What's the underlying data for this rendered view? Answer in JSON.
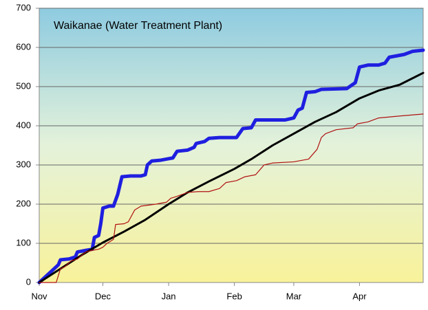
{
  "chart_data": {
    "type": "line",
    "title": "Waikanae (Water Treatment Plant)",
    "xlim": [
      0,
      181
    ],
    "xticks": [
      {
        "value": 0,
        "label": "Nov"
      },
      {
        "value": 30,
        "label": "Dec"
      },
      {
        "value": 61,
        "label": "Jan"
      },
      {
        "value": 92,
        "label": "Feb"
      },
      {
        "value": 120,
        "label": "Mar"
      },
      {
        "value": 151,
        "label": "Apr"
      }
    ],
    "ylim": [
      0,
      700
    ],
    "yticks": [
      0,
      100,
      200,
      300,
      400,
      500,
      600,
      700
    ],
    "grid": true,
    "series": [
      {
        "color": "#1f1fe0",
        "width": 5,
        "x": [
          0,
          3,
          6,
          9,
          10,
          14,
          17,
          18,
          22,
          25,
          26,
          28,
          29,
          30,
          33,
          35,
          37,
          39,
          43,
          48,
          50,
          51,
          53,
          57,
          60,
          63,
          65,
          70,
          73,
          74,
          78,
          80,
          85,
          93,
          96,
          100,
          102,
          110,
          116,
          120,
          122,
          124,
          126,
          130,
          133,
          145,
          149,
          151,
          155,
          160,
          163,
          165,
          172,
          176,
          181
        ],
        "values": [
          0,
          15,
          30,
          45,
          58,
          60,
          65,
          78,
          82,
          85,
          115,
          120,
          150,
          190,
          195,
          195,
          225,
          270,
          272,
          272,
          275,
          300,
          310,
          312,
          315,
          318,
          335,
          338,
          345,
          355,
          360,
          368,
          370,
          370,
          393,
          395,
          415,
          415,
          415,
          420,
          440,
          445,
          485,
          487,
          493,
          495,
          510,
          550,
          555,
          555,
          560,
          575,
          582,
          590,
          593
        ]
      },
      {
        "color": "#000000",
        "width": 3,
        "x": [
          0,
          10,
          20,
          30,
          40,
          50,
          61,
          70,
          80,
          92,
          100,
          110,
          120,
          130,
          140,
          151,
          160,
          170,
          181
        ],
        "values": [
          0,
          35,
          70,
          102,
          130,
          160,
          200,
          230,
          258,
          290,
          315,
          350,
          380,
          410,
          435,
          470,
          490,
          505,
          535
        ]
      },
      {
        "color": "#b01010",
        "width": 1.2,
        "x": [
          0,
          8,
          10,
          12,
          15,
          18,
          22,
          25,
          28,
          30,
          32,
          35,
          36,
          40,
          42,
          45,
          48,
          55,
          60,
          62,
          65,
          70,
          75,
          80,
          85,
          88,
          93,
          97,
          102,
          106,
          110,
          120,
          127,
          131,
          133,
          135,
          140,
          148,
          150,
          155,
          160,
          170,
          181
        ],
        "values": [
          0,
          0,
          35,
          40,
          55,
          60,
          78,
          82,
          85,
          90,
          100,
          110,
          148,
          150,
          155,
          185,
          195,
          200,
          205,
          215,
          220,
          230,
          232,
          232,
          240,
          255,
          260,
          270,
          275,
          300,
          305,
          308,
          315,
          340,
          370,
          380,
          390,
          395,
          405,
          410,
          420,
          425,
          430
        ]
      }
    ]
  }
}
